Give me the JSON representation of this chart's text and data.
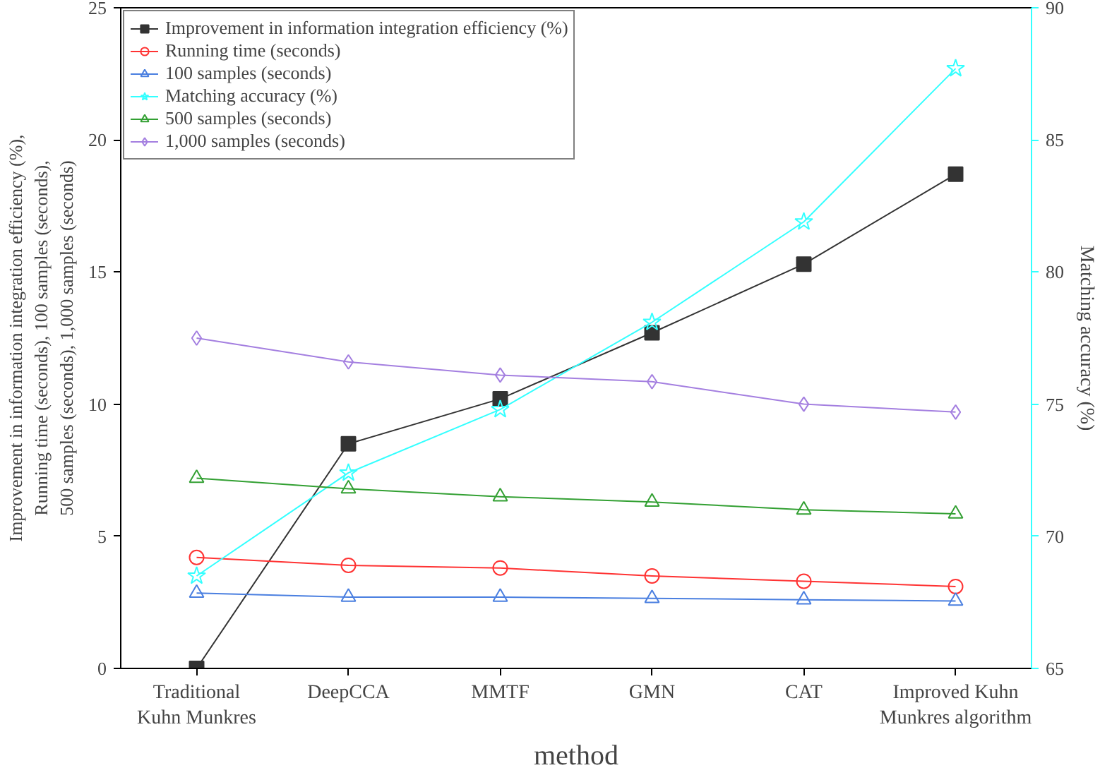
{
  "chart_data": {
    "type": "line",
    "xlabel": "method",
    "ylabel": "Improvement in information integration efficiency (%),\nRunning time (seconds), 100 samples (seconds),\n500 samples (seconds), 1,000 samples (seconds)",
    "y2label": "Matching accuracy (%)",
    "categories": [
      "Traditional Kuhn Munkres",
      "DeepCCA",
      "MMTF",
      "GMN",
      "CAT",
      "Improved Kuhn Munkres algorithm"
    ],
    "ylim": [
      0,
      25
    ],
    "yticks": [
      0,
      5,
      10,
      15,
      20,
      25
    ],
    "y2lim": [
      65,
      90
    ],
    "y2ticks": [
      65,
      70,
      75,
      80,
      85,
      90
    ],
    "grid": false,
    "legend": "top left",
    "series": [
      {
        "name": "Improvement in information integration efficiency (%)",
        "color": "#333333",
        "marker": "square",
        "values": [
          0,
          8.5,
          10.2,
          12.7,
          15.3,
          18.7
        ]
      },
      {
        "name": "Running time (seconds)",
        "color": "#ff3333",
        "marker": "circle",
        "values": [
          4.2,
          3.9,
          3.8,
          3.5,
          3.3,
          3.1
        ]
      },
      {
        "name": "100 samples (seconds)",
        "color": "#4a7fe0",
        "marker": "triangle",
        "values": [
          2.85,
          2.7,
          2.7,
          2.65,
          2.6,
          2.55
        ]
      },
      {
        "name": "Matching accuracy (%)",
        "color": "#33ffff",
        "marker": "star",
        "axis": "y2",
        "values": [
          68.5,
          72.4,
          74.8,
          78.1,
          81.9,
          87.7
        ]
      },
      {
        "name": "500 samples (seconds)",
        "color": "#33a033",
        "marker": "triangle",
        "values": [
          7.2,
          6.8,
          6.5,
          6.3,
          6.0,
          5.85
        ]
      },
      {
        "name": "1,000 samples (seconds)",
        "color": "#a47fe0",
        "marker": "diamond",
        "values": [
          12.5,
          11.6,
          11.1,
          10.85,
          10.0,
          9.7
        ]
      }
    ]
  }
}
